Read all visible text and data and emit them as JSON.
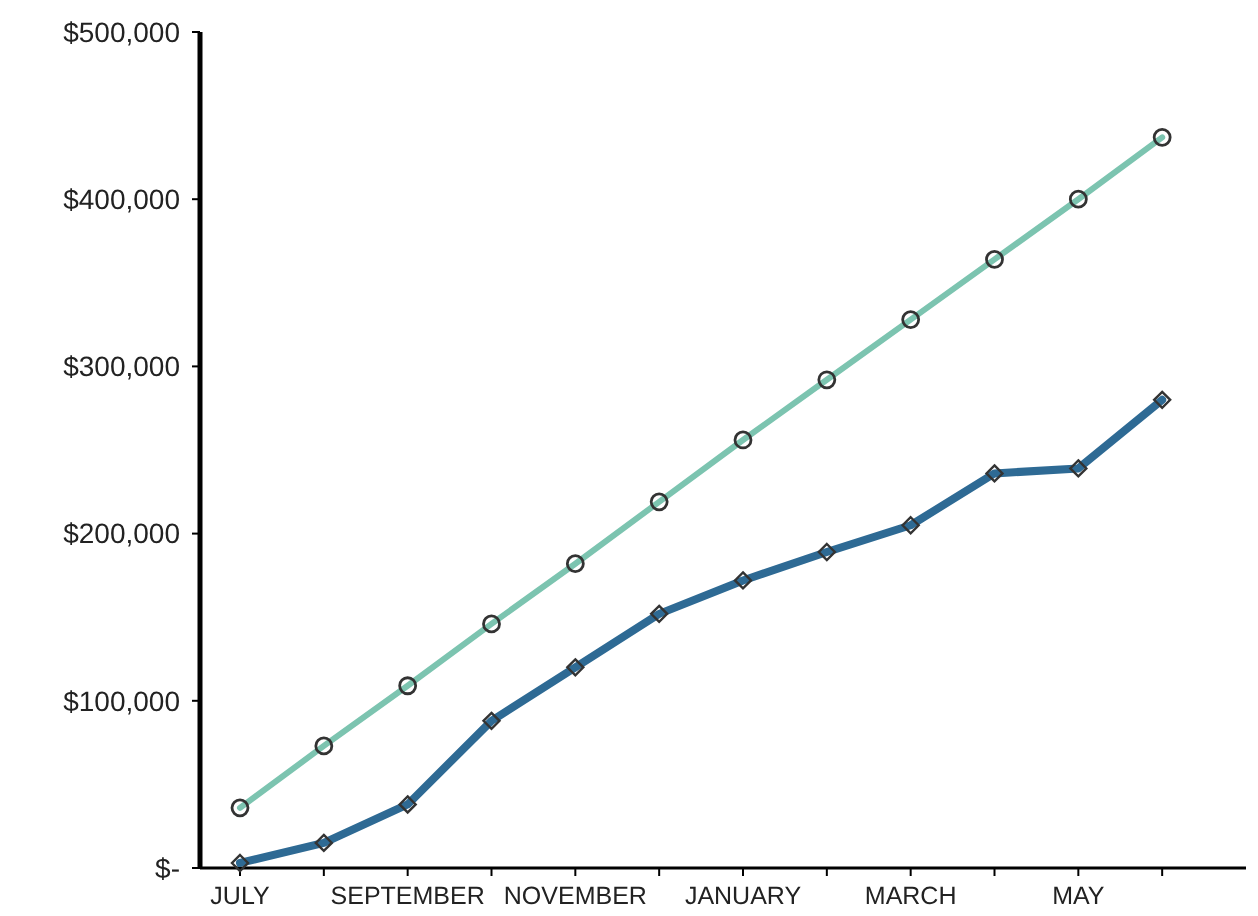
{
  "chart_data": {
    "type": "line",
    "categories": [
      "JULY",
      null,
      "SEPTEMBER",
      null,
      "NOVEMBER",
      null,
      "JANUARY",
      null,
      "MARCH",
      null,
      "MAY",
      null
    ],
    "series": [
      {
        "color": "#7cc4b0",
        "marker": "circle",
        "values": [
          36000,
          73000,
          109000,
          146000,
          182000,
          219000,
          256000,
          292000,
          328000,
          364000,
          400000,
          437000
        ]
      },
      {
        "color": "#2e6a94",
        "marker": "diamond",
        "values": [
          3000,
          15000,
          38000,
          88000,
          120000,
          152000,
          172000,
          189000,
          205000,
          236000,
          239000,
          280000
        ]
      }
    ],
    "ylim": [
      0,
      500000
    ],
    "yticks": [
      {
        "value": 0,
        "label": "$-"
      },
      {
        "value": 100000,
        "label": "$100,000"
      },
      {
        "value": 200000,
        "label": "$200,000"
      },
      {
        "value": 300000,
        "label": "$300,000"
      },
      {
        "value": 400000,
        "label": "$400,000"
      },
      {
        "value": 500000,
        "label": "$500,000"
      }
    ],
    "grid": false,
    "line_style": "solid"
  }
}
